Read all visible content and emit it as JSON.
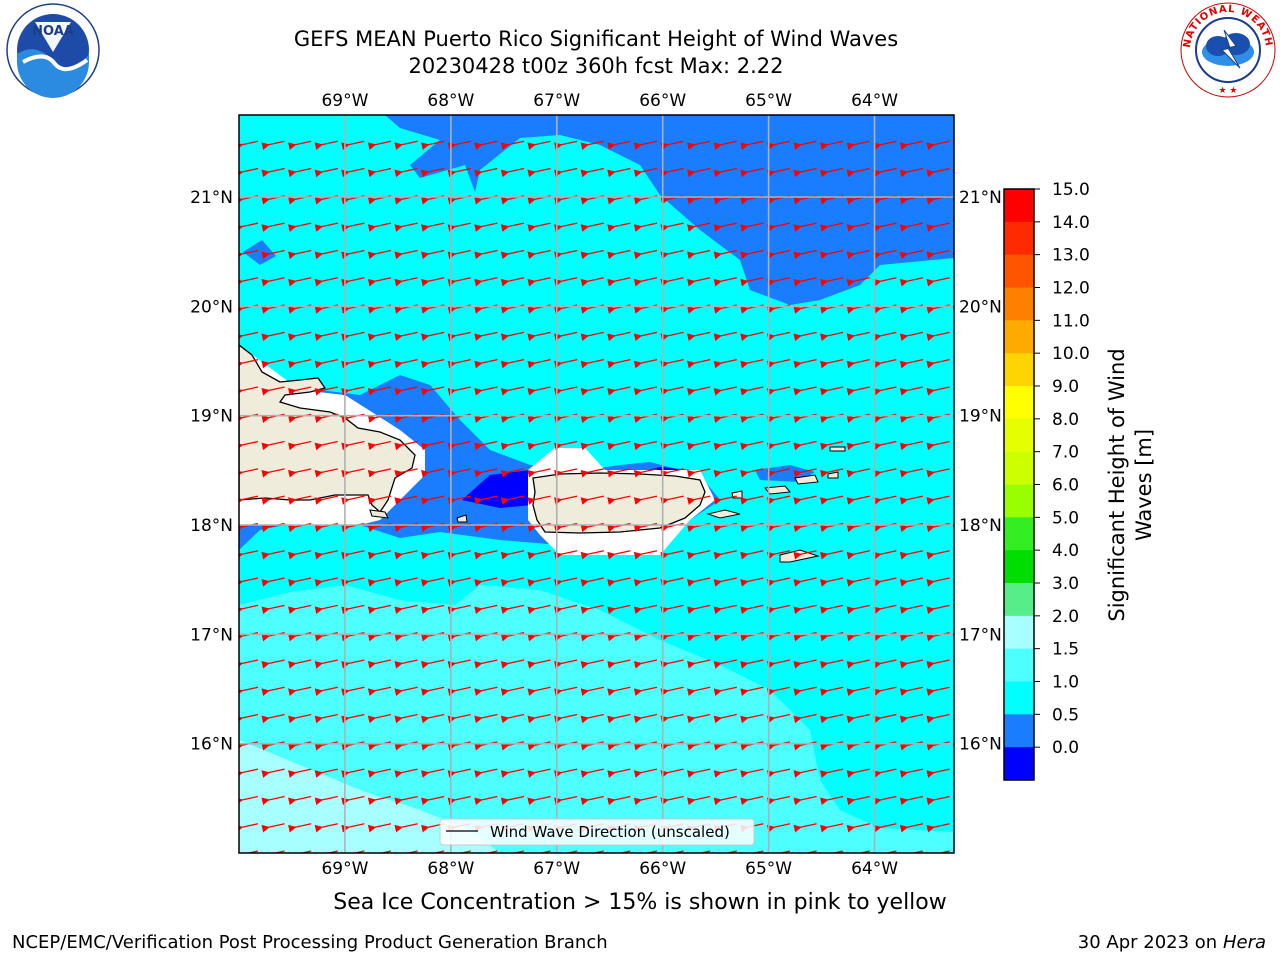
{
  "header": {
    "title_line1": "GEFS MEAN Puerto Rico Significant Height of Wind Waves",
    "title_line2": "20230428 t00z 360h fcst   Max: 2.22"
  },
  "logos": {
    "left": {
      "name": "noaa-logo",
      "text": "NOAA"
    },
    "right": {
      "name": "nws-logo"
    }
  },
  "map": {
    "lon_labels": [
      "69°W",
      "68°W",
      "67°W",
      "66°W",
      "65°W",
      "64°W"
    ],
    "lat_labels": [
      "21°N",
      "20°N",
      "19°N",
      "18°N",
      "17°N",
      "16°N"
    ],
    "lon_values": [
      -69,
      -68,
      -67,
      -66,
      -65,
      -64
    ],
    "lat_values": [
      21,
      20,
      19,
      18,
      17,
      16
    ],
    "lon_range": [
      -70,
      -63.25
    ],
    "lat_range": [
      15.0,
      21.75
    ],
    "gridlines": true,
    "legend_label": "Wind Wave Direction (unscaled)",
    "legend_placement": "bottom-center",
    "arrow_color": "#ff0000",
    "land_color": "#efecdc",
    "ocean_colors": {
      "0.0-0.5": "#0000ff",
      "0.5-1.0": "#1a7cff",
      "1.0-1.5": "#00ffff",
      "1.5-2.0": "#4dffff",
      "2.0-3.0": "#a8ffff"
    }
  },
  "colorbar": {
    "label": "Significant Height of Wind Waves [m]",
    "ticks": [
      "15.0",
      "14.0",
      "13.0",
      "12.0",
      "11.0",
      "10.0",
      "9.0",
      "8.0",
      "7.0",
      "6.0",
      "5.0",
      "4.0",
      "3.0",
      "2.0",
      "1.5",
      "1.0",
      "0.5",
      "0.0"
    ],
    "colors_top_to_bottom": [
      "#ff0000",
      "#ff2a00",
      "#ff5500",
      "#ff7f00",
      "#ffaa00",
      "#ffd400",
      "#ffff00",
      "#e5ff00",
      "#ccff00",
      "#99ff00",
      "#33ee22",
      "#00dd00",
      "#55ee88",
      "#a8ffff",
      "#4dffff",
      "#00ffff",
      "#1a7cff",
      "#0000ff"
    ]
  },
  "caption": "Sea Ice Concentration > 15% is shown in pink to yellow",
  "footer": {
    "left": "NCEP/EMC/Verification Post Processing Product Generation Branch",
    "right_prefix": "30 Apr 2023 on ",
    "right_host": "Hera"
  }
}
